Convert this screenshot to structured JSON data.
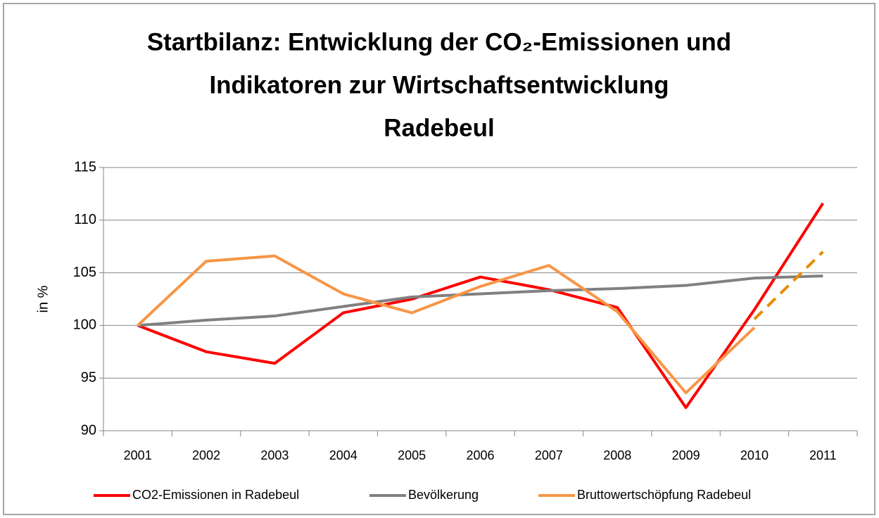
{
  "chart_data": {
    "type": "line",
    "title": [
      "Startbilanz: Entwicklung der CO₂-Emissionen und",
      "Indikatoren zur Wirtschaftsentwicklung",
      "Radebeul"
    ],
    "ylabel": "in %",
    "categories": [
      "2001",
      "2002",
      "2003",
      "2004",
      "2005",
      "2006",
      "2007",
      "2008",
      "2009",
      "2010",
      "2011"
    ],
    "series": [
      {
        "name": "CO2-Emissionen in Radebeul",
        "color": "#ff0000",
        "values": [
          100,
          97.5,
          96.4,
          101.2,
          102.5,
          104.6,
          103.4,
          101.7,
          92.2,
          101.5,
          111.6
        ]
      },
      {
        "name": "Bevölkerung",
        "color": "#808080",
        "values": [
          100,
          100.5,
          100.9,
          101.8,
          102.7,
          103.0,
          103.3,
          103.5,
          103.8,
          104.5,
          104.7
        ]
      },
      {
        "name": "Bruttowertschöpfung Radebeul",
        "color": "#f79646",
        "values": [
          100,
          106.1,
          106.6,
          103.0,
          101.2,
          103.7,
          105.7,
          101.3,
          93.6,
          99.8,
          null
        ]
      },
      {
        "color": "#e98b00",
        "dashed": true,
        "values": [
          null,
          null,
          null,
          null,
          null,
          null,
          null,
          null,
          null,
          100.6,
          107.0
        ]
      }
    ],
    "ylim": [
      90,
      115
    ],
    "yticks": [
      90,
      95,
      100,
      105,
      110,
      115
    ],
    "grid": true,
    "legend": "bottom"
  }
}
